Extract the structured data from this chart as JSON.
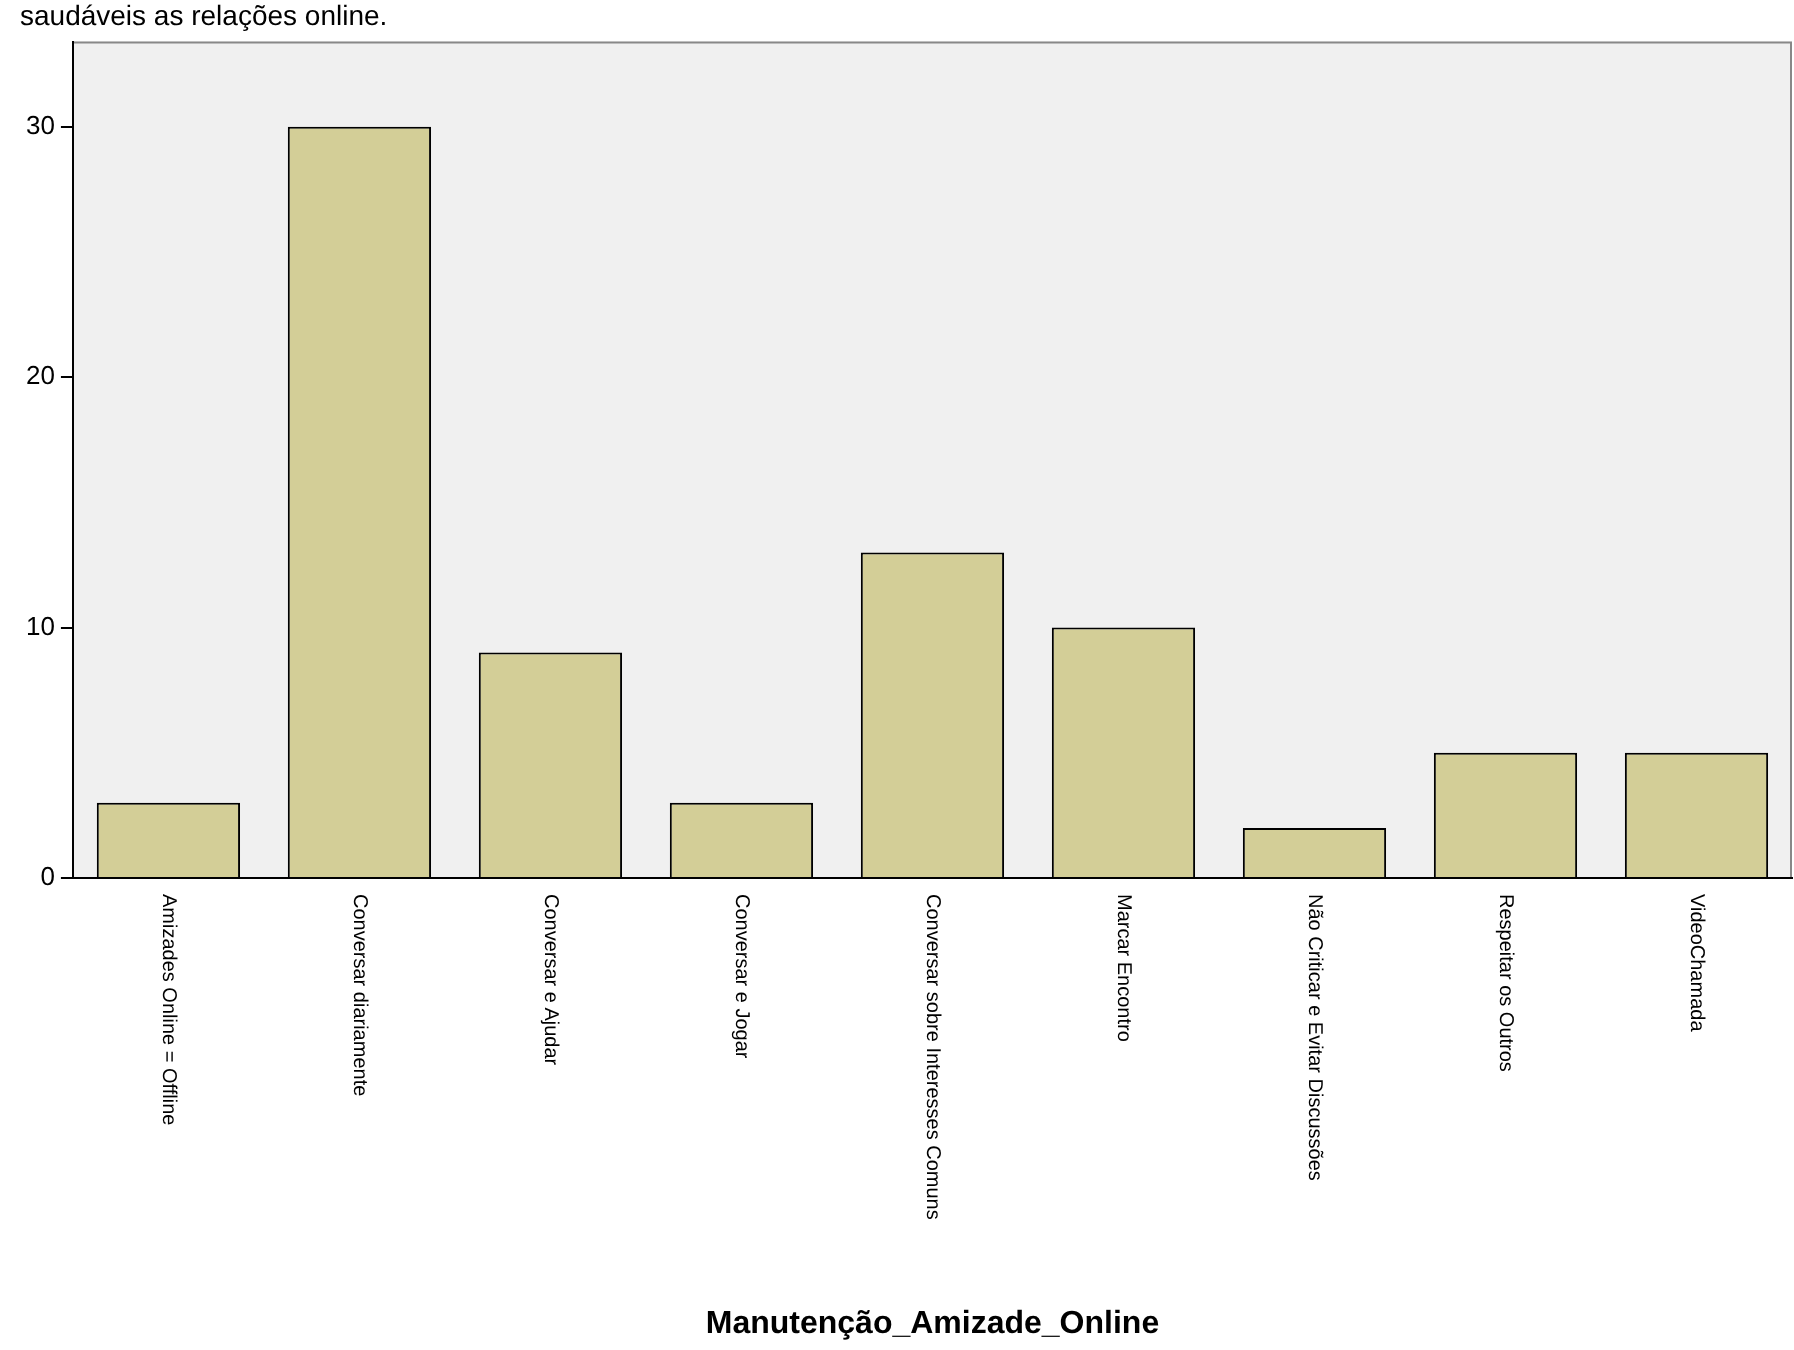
{
  "chart_data": {
    "type": "bar",
    "title": "saudáveis as relações online.",
    "xlabel": "Manutenção_Amizade_Online",
    "categories": [
      "Amizades Online = Offline",
      "Conversar diariamente",
      "Conversar e Ajudar",
      "Conversar e Jogar",
      "Conversar sobre Interesses Comuns",
      "Marcar Encontro",
      "Não Criticar e Evitar Discussões",
      "Respeitar os Outros",
      "VideoChamada"
    ],
    "values": [
      3,
      30,
      9,
      3,
      13,
      10,
      2,
      5,
      5
    ],
    "color": "#d3ce97",
    "ylim": [
      0,
      33.4
    ],
    "yticks": [
      0,
      10,
      20,
      30
    ],
    "grid": false,
    "legend": false
  }
}
